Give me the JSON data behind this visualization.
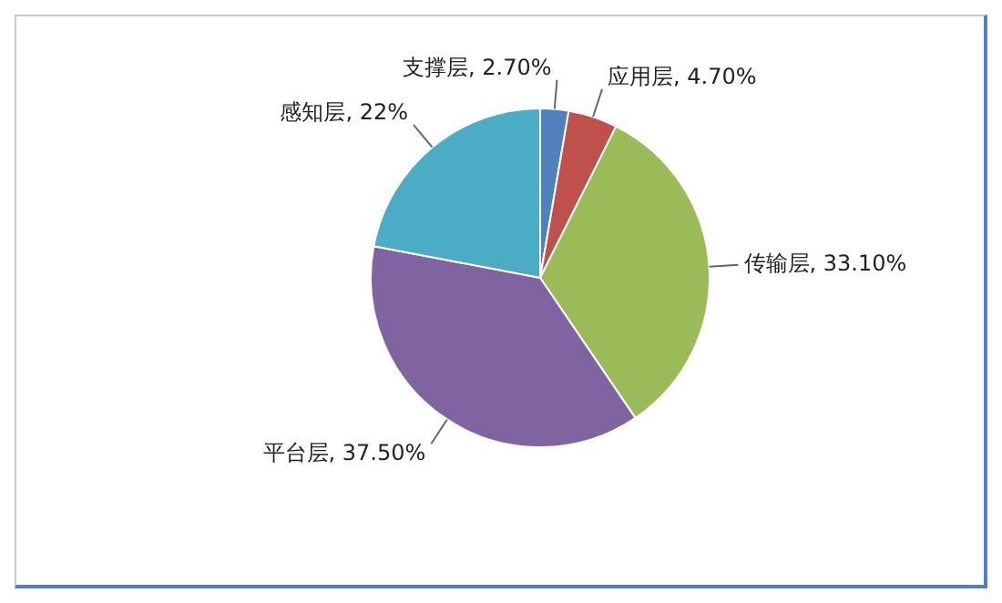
{
  "chart_data": {
    "type": "pie",
    "categories": [
      "支撑层",
      "应用层",
      "传输层",
      "平台层",
      "感知层"
    ],
    "values": [
      2.7,
      4.7,
      33.1,
      37.5,
      22
    ],
    "value_labels": [
      "2.70%",
      "4.70%",
      "33.10%",
      "37.50%",
      "22%"
    ],
    "colors": [
      "#4f81bd",
      "#c0504d",
      "#9bbb59",
      "#8064a2",
      "#4bacc6"
    ],
    "legend": false
  }
}
